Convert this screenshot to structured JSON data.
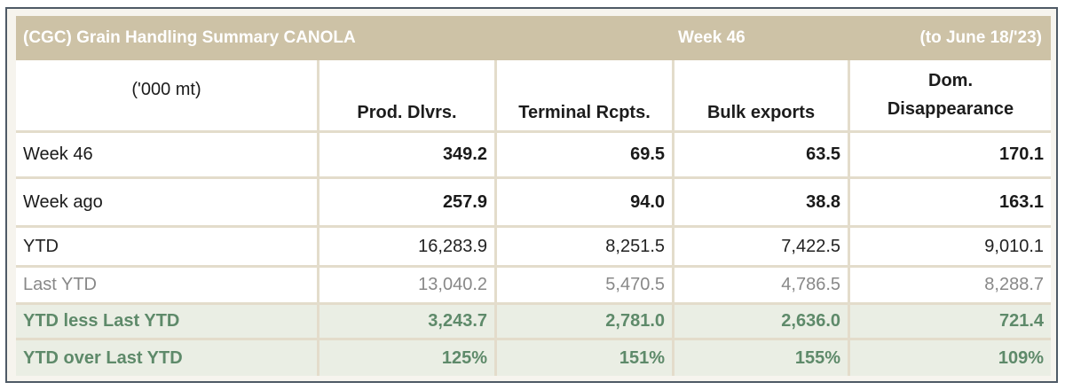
{
  "title": {
    "left": "(CGC) Grain Handling Summary CANOLA",
    "middle": "Week 46",
    "right": "(to June 18/'23)"
  },
  "header": {
    "unit": "('000 mt)",
    "columns": [
      "Prod. Dlvrs.",
      "Terminal Rcpts.",
      "Bulk exports",
      "Dom."
    ],
    "dom_line2": "Disappearance"
  },
  "rows": [
    {
      "label": "Week 46",
      "values": [
        "349.2",
        "69.5",
        "63.5",
        "170.1"
      ]
    },
    {
      "label": "Week ago",
      "values": [
        "257.9",
        "94.0",
        "38.8",
        "163.1"
      ]
    },
    {
      "label": "YTD",
      "values": [
        "16,283.9",
        "8,251.5",
        "7,422.5",
        "9,010.1"
      ]
    },
    {
      "label": "Last YTD",
      "values": [
        "13,040.2",
        "5,470.5",
        "4,786.5",
        "8,288.7"
      ]
    },
    {
      "label": "YTD less Last YTD",
      "values": [
        "3,243.7",
        "2,781.0",
        "2,636.0",
        "721.4"
      ]
    },
    {
      "label": "YTD over Last YTD",
      "values": [
        "125%",
        "151%",
        "155%",
        "109%"
      ]
    }
  ],
  "colors": {
    "title_bg": "#cdc2a6",
    "green_text": "#5e8a6a",
    "green_bg": "#eaeee4",
    "border": "#e3dccb"
  }
}
